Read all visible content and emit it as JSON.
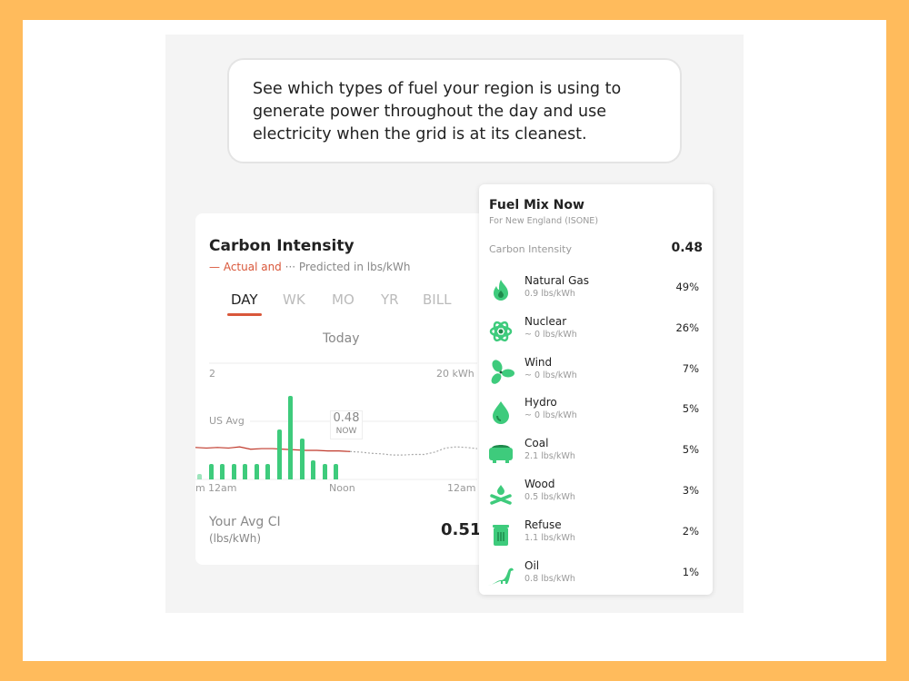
{
  "intro_text": "See which types of fuel your region is using to generate power throughout the day and use electricity when the grid is at its cleanest.",
  "carbon_card": {
    "title": "Carbon Intensity",
    "legend_actual": "— Actual and",
    "legend_predicted": "··· Predicted in lbs/kWh",
    "tabs": [
      {
        "label": "DAY",
        "active": true
      },
      {
        "label": "WK"
      },
      {
        "label": "MO"
      },
      {
        "label": "YR"
      },
      {
        "label": "BILL"
      }
    ],
    "period": "Today",
    "now_value": "0.48",
    "now_label": "NOW",
    "avg_label": "Your Avg CI",
    "avg_unit": "(lbs/kWh)",
    "avg_value": "0.51"
  },
  "chart_data": {
    "type": "bar",
    "left_axis_top": "2",
    "right_axis_top": "20 kWh",
    "reference_label": "US Avg",
    "reference_value": 1.0,
    "x_tick_labels": [
      "m",
      "12am",
      "Noon",
      "12am"
    ],
    "usage_kwh": [
      1,
      2.7,
      2.7,
      2.7,
      2.7,
      2.7,
      2.7,
      8.6,
      14.4,
      7,
      3.3,
      2.7,
      2.7
    ],
    "actual_ci": [
      0.55,
      0.54,
      0.55,
      0.54,
      0.56,
      0.52,
      0.53,
      0.53,
      0.52,
      0.51,
      0.5,
      0.5,
      0.49,
      0.49,
      0.48
    ],
    "predicted_ci": [
      0.48,
      0.47,
      0.45,
      0.44,
      0.42,
      0.42,
      0.43,
      0.43,
      0.47,
      0.54,
      0.56,
      0.55,
      0.53
    ],
    "colors": {
      "bars": "#3ecb7c",
      "actual": "#c0392b",
      "predicted": "#aaaaaa"
    }
  },
  "fuel_mix": {
    "title": "Fuel Mix Now",
    "subtitle": "For New England (ISONE)",
    "ci_label": "Carbon Intensity",
    "ci_value": "0.48",
    "items": [
      {
        "name": "Natural Gas",
        "rate": "0.9 lbs/kWh",
        "pct": "49%",
        "icon": "flame-icon"
      },
      {
        "name": "Nuclear",
        "rate": "~ 0 lbs/kWh",
        "pct": "26%",
        "icon": "atom-icon"
      },
      {
        "name": "Wind",
        "rate": "~ 0 lbs/kWh",
        "pct": "7%",
        "icon": "fan-icon"
      },
      {
        "name": "Hydro",
        "rate": "~ 0 lbs/kWh",
        "pct": "5%",
        "icon": "water-drop-icon"
      },
      {
        "name": "Coal",
        "rate": "2.1 lbs/kWh",
        "pct": "5%",
        "icon": "coal-cart-icon"
      },
      {
        "name": "Wood",
        "rate": "0.5 lbs/kWh",
        "pct": "3%",
        "icon": "campfire-icon"
      },
      {
        "name": "Refuse",
        "rate": "1.1 lbs/kWh",
        "pct": "2%",
        "icon": "trash-can-icon"
      },
      {
        "name": "Oil",
        "rate": "0.8 lbs/kWh",
        "pct": "1%",
        "icon": "dinosaur-icon"
      }
    ]
  }
}
